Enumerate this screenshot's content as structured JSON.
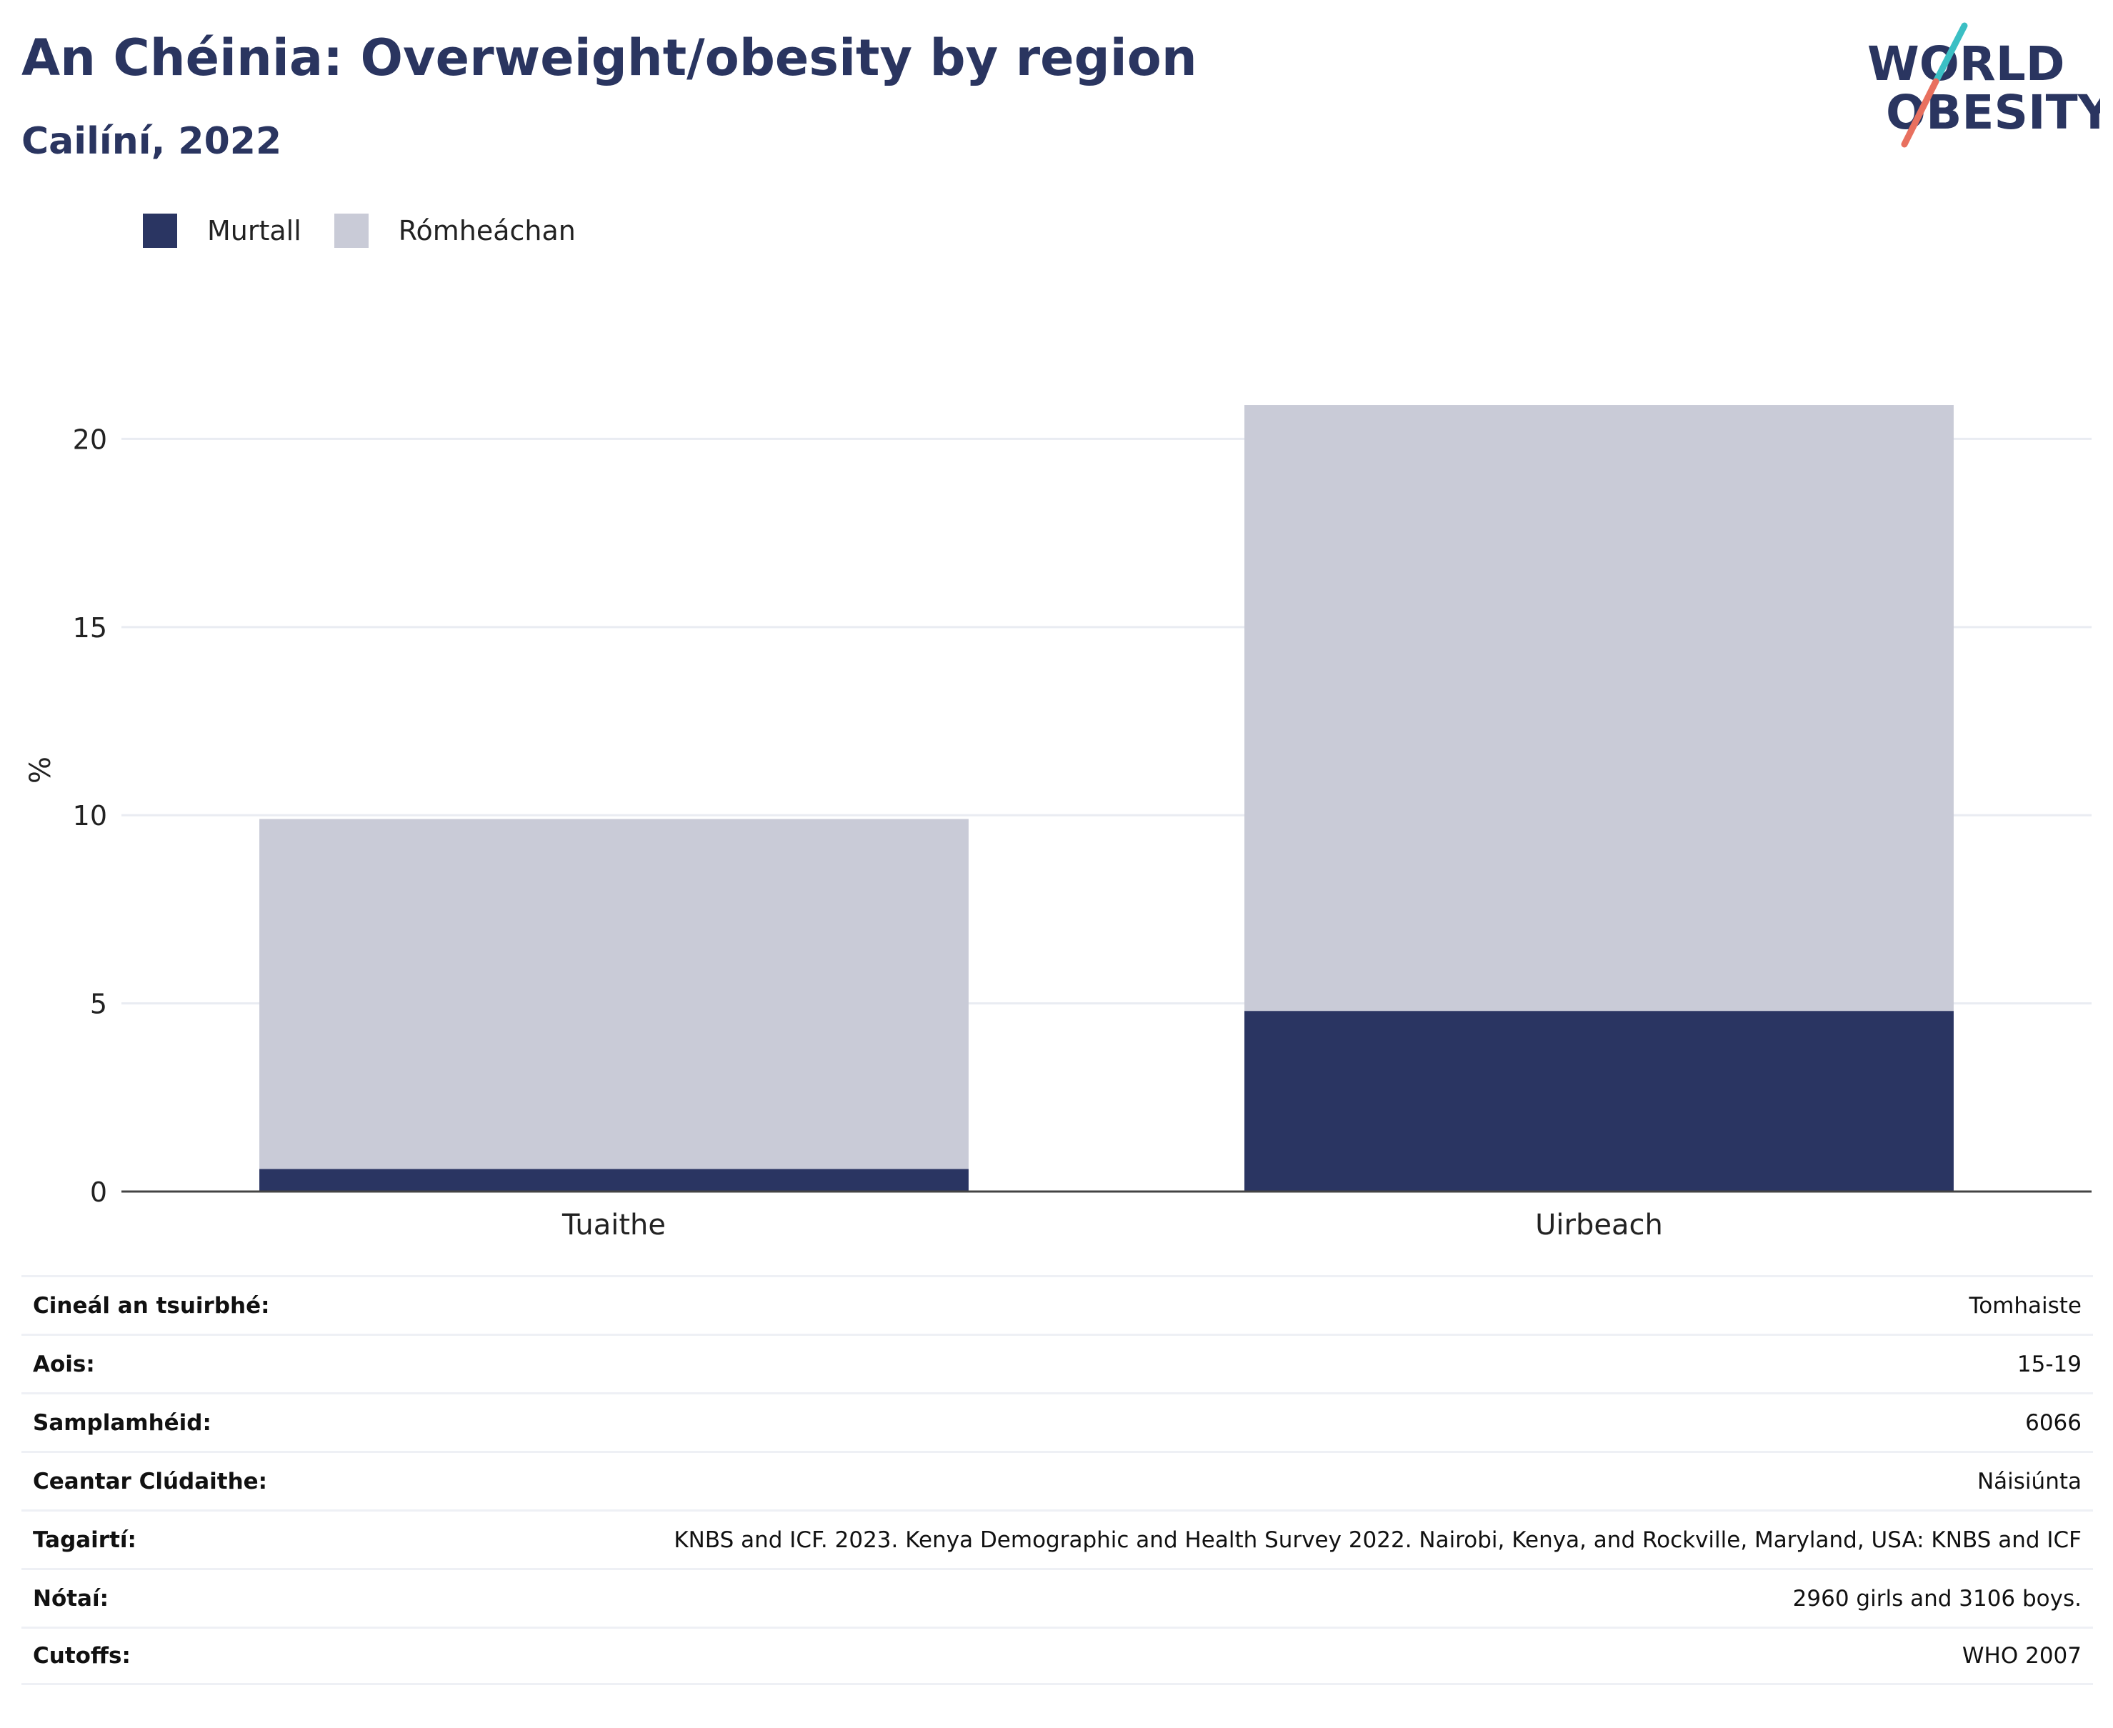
{
  "header": {
    "title": "An Chéinia: Overweight/obesity by region",
    "subtitle": "Cailíní, 2022"
  },
  "logo": {
    "line1": "WORLD",
    "line2": "OBESITY",
    "text_color": "#2a3560",
    "slash_teal": "#3bbfc4",
    "slash_coral": "#e8705f"
  },
  "chart_data": {
    "type": "bar",
    "stacked": true,
    "categories": [
      "Tuaithe",
      "Uirbeach"
    ],
    "series": [
      {
        "name": "Murtall",
        "color": "#2a3562",
        "values": [
          0.6,
          4.8
        ]
      },
      {
        "name": "Rómheáchan",
        "color": "#c9cbd7",
        "values": [
          9.3,
          16.1
        ]
      }
    ],
    "ylabel": "%",
    "ylim": [
      0,
      22.4
    ],
    "yticks": [
      0,
      5,
      10,
      15,
      20
    ],
    "grid": true,
    "legend": "top-left"
  },
  "info": [
    {
      "key": "Cineál an tsuirbhé:",
      "value": "Tomhaiste"
    },
    {
      "key": "Aois:",
      "value": "15-19"
    },
    {
      "key": "Samplamhéid:",
      "value": "6066"
    },
    {
      "key": "Ceantar Clúdaithe:",
      "value": "Náisiúnta"
    },
    {
      "key": "Tagairtí:",
      "value": "KNBS and ICF. 2023. Kenya Demographic and Health Survey 2022. Nairobi, Kenya, and Rockville, Maryland, USA: KNBS and ICF"
    },
    {
      "key": "Nótaí:",
      "value": "2960 girls and 3106 boys."
    },
    {
      "key": "Cutoffs:",
      "value": "WHO 2007"
    }
  ]
}
